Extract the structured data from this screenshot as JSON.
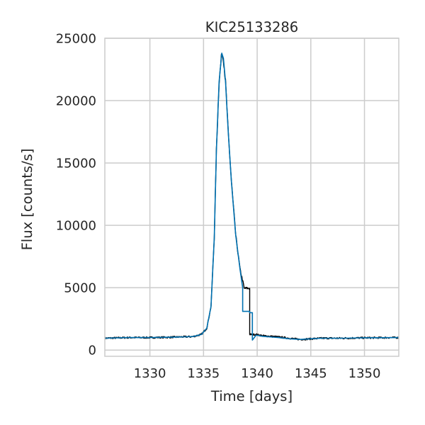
{
  "chart_data": {
    "type": "line",
    "title": "KIC25133286",
    "xlabel": "Time [days]",
    "ylabel": "Flux [counts/s]",
    "xlim": [
      1325.8,
      1353.2
    ],
    "ylim": [
      -500,
      25000
    ],
    "xticks": [
      1330,
      1335,
      1340,
      1345,
      1350
    ],
    "yticks": [
      0,
      5000,
      10000,
      15000,
      20000,
      25000
    ],
    "grid": true,
    "legend": "none",
    "colors": {
      "data": "#000000",
      "model": "#0072b2",
      "grid": "#cccccc",
      "frame": "#cccccc"
    },
    "series": [
      {
        "color": "#000000",
        "style": "noisy",
        "x": [
          1325.8,
          1328,
          1330,
          1332,
          1334,
          1334.8,
          1335.3,
          1335.7,
          1336.0,
          1336.2,
          1336.45,
          1336.7,
          1336.85,
          1337.05,
          1337.3,
          1337.6,
          1338.0,
          1338.4,
          1338.8,
          1338.8,
          1339.3,
          1339.3,
          1339.9,
          1340.5,
          1342,
          1343,
          1344,
          1345,
          1346,
          1348,
          1350,
          1353.2
        ],
        "y": [
          950,
          1000,
          1000,
          1030,
          1080,
          1250,
          1750,
          3500,
          9000,
          16000,
          21500,
          23800,
          23400,
          21500,
          17500,
          13500,
          9200,
          6500,
          4950,
          4950,
          4950,
          1250,
          1250,
          1150,
          1050,
          950,
          850,
          900,
          950,
          950,
          980,
          1000
        ]
      },
      {
        "color": "#0072b2",
        "style": "smooth",
        "x": [
          1325.8,
          1328,
          1330,
          1332,
          1334,
          1334.8,
          1335.3,
          1335.7,
          1336.0,
          1336.2,
          1336.45,
          1336.7,
          1336.85,
          1337.05,
          1337.3,
          1337.6,
          1338.0,
          1338.4,
          1338.65,
          1338.65,
          1339.3,
          1339.3,
          1339.55,
          1339.55,
          1339.9,
          1340.5,
          1342,
          1343,
          1344,
          1345,
          1346,
          1348,
          1350,
          1353.2
        ],
        "y": [
          950,
          1000,
          1000,
          1030,
          1080,
          1250,
          1750,
          3500,
          9000,
          16000,
          21500,
          23800,
          23400,
          21500,
          17500,
          13500,
          9200,
          6500,
          5000,
          3100,
          3100,
          3000,
          3000,
          800,
          1200,
          1100,
          1000,
          900,
          850,
          900,
          950,
          950,
          980,
          1000
        ]
      }
    ]
  }
}
